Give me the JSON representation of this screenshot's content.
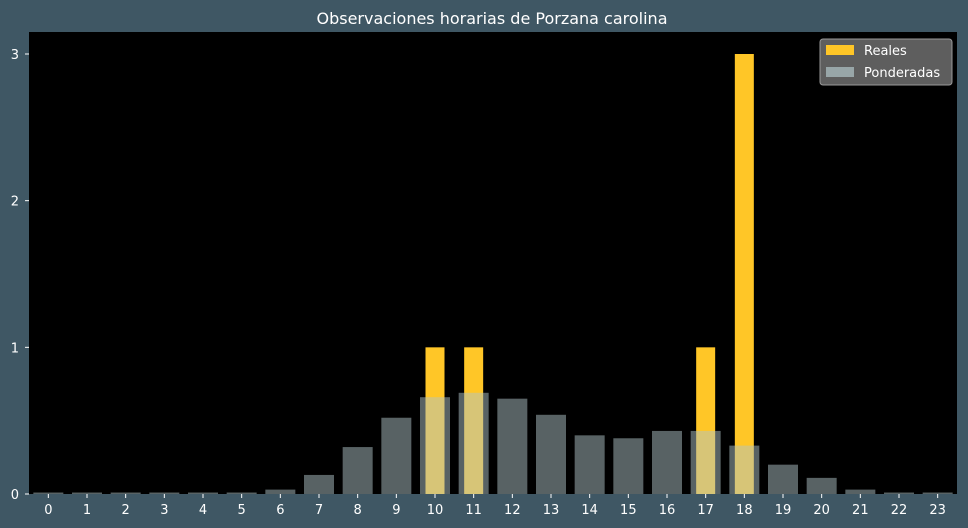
{
  "chart_data": {
    "type": "bar",
    "title": "Observaciones horarias de Porzana carolina",
    "xlabel": "",
    "ylabel": "",
    "categories": [
      "0",
      "1",
      "2",
      "3",
      "4",
      "5",
      "6",
      "7",
      "8",
      "9",
      "10",
      "11",
      "12",
      "13",
      "14",
      "15",
      "16",
      "17",
      "18",
      "19",
      "20",
      "21",
      "22",
      "23"
    ],
    "ylim": [
      0,
      3.15
    ],
    "yticks": [
      "0",
      "1",
      "2",
      "3"
    ],
    "grid": false,
    "legend_position": "top-right",
    "series": [
      {
        "name": "Reales",
        "color": "#ffc627",
        "values": [
          0,
          0,
          0,
          0,
          0,
          0,
          0,
          0,
          0,
          0,
          1,
          1,
          0,
          0,
          0,
          0,
          0,
          1,
          3,
          0,
          0,
          0,
          0,
          0
        ]
      },
      {
        "name": "Ponderadas",
        "color": "#b0c4c8",
        "values": [
          0.01,
          0.01,
          0.01,
          0.01,
          0.01,
          0.01,
          0.03,
          0.13,
          0.32,
          0.52,
          0.66,
          0.69,
          0.65,
          0.54,
          0.4,
          0.38,
          0.43,
          0.43,
          0.33,
          0.2,
          0.11,
          0.03,
          0.01,
          0.01
        ]
      }
    ]
  },
  "colors": {
    "background": "#3f5764",
    "plot_area": "#000000"
  }
}
